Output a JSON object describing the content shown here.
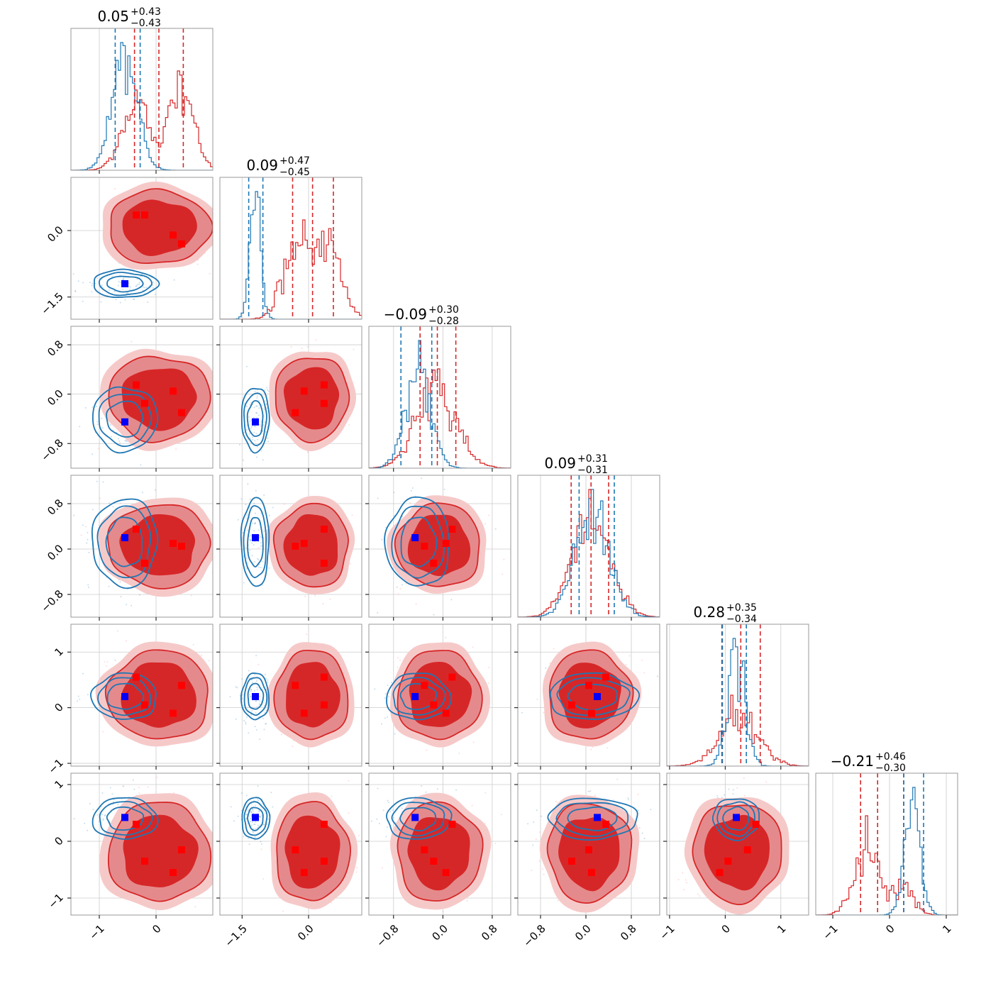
{
  "chart_data": {
    "type": "corner",
    "grid": true,
    "dims": [
      {
        "title": "0.05",
        "title_sup": "+0.43",
        "title_sub": "−0.43",
        "range": [
          -1.5,
          1.0
        ],
        "ticks": [
          -1,
          0
        ],
        "tick_labels": [
          "−1",
          "0"
        ],
        "blue": {
          "mean": -0.55,
          "sd": 0.22,
          "q": [
            -0.72,
            -0.55,
            -0.28
          ]
        },
        "red": {
          "modes": [
            {
              "mu": -0.35,
              "sd": 0.25,
              "w": 0.45
            },
            {
              "mu": 0.45,
              "sd": 0.22,
              "w": 0.55
            }
          ],
          "q": [
            -0.38,
            0.05,
            0.48
          ]
        }
      },
      {
        "title": "0.09",
        "title_sup": "+0.47",
        "title_sub": "−0.45",
        "range": [
          -2.0,
          1.2
        ],
        "ticks": [
          -1.5,
          0.0
        ],
        "tick_labels": [
          "−1.5",
          "0.0"
        ],
        "blue": {
          "mean": -1.2,
          "sd": 0.12,
          "q": [
            -1.35,
            -1.2,
            -1.03
          ]
        },
        "red": {
          "modes": [
            {
              "mu": -0.3,
              "sd": 0.3,
              "w": 0.5
            },
            {
              "mu": 0.45,
              "sd": 0.3,
              "w": 0.5
            }
          ],
          "q": [
            -0.36,
            0.09,
            0.56
          ]
        }
      },
      {
        "title": "−0.09",
        "title_sup": "+0.30",
        "title_sub": "−0.28",
        "range": [
          -1.2,
          1.1
        ],
        "ticks": [
          -0.8,
          0.0,
          0.8
        ],
        "tick_labels": [
          "−0.8",
          "0.0",
          "0.8"
        ],
        "blue": {
          "mean": -0.4,
          "sd": 0.2,
          "q": [
            -0.68,
            -0.4,
            -0.18
          ]
        },
        "red": {
          "modes": [
            {
              "mu": -0.1,
              "sd": 0.32,
              "w": 1.0
            }
          ],
          "q": [
            -0.37,
            -0.09,
            0.21
          ]
        }
      },
      {
        "title": "0.09",
        "title_sup": "+0.31",
        "title_sub": "−0.31",
        "range": [
          -1.2,
          1.3
        ],
        "ticks": [
          -0.8,
          0.0,
          0.8
        ],
        "tick_labels": [
          "−0.8",
          "0.0",
          "0.8"
        ],
        "blue": {
          "mean": 0.12,
          "sd": 0.3,
          "q": [
            -0.12,
            0.12,
            0.5
          ]
        },
        "red": {
          "modes": [
            {
              "mu": 0.1,
              "sd": 0.34,
              "w": 1.0
            }
          ],
          "q": [
            -0.26,
            0.09,
            0.4
          ]
        }
      },
      {
        "title": "0.28",
        "title_sup": "+0.35",
        "title_sub": "−0.34",
        "range": [
          -1.05,
          1.5
        ],
        "ticks": [
          -1,
          0,
          1
        ],
        "tick_labels": [
          "−1",
          "0",
          "1"
        ],
        "blue": {
          "mean": 0.2,
          "sd": 0.16,
          "q": [
            -0.05,
            0.2,
            0.38
          ]
        },
        "red": {
          "modes": [
            {
              "mu": 0.25,
              "sd": 0.35,
              "w": 1.0
            }
          ],
          "q": [
            -0.06,
            0.28,
            0.63
          ]
        }
      },
      {
        "title": "−0.21",
        "title_sup": "+0.46",
        "title_sub": "−0.30",
        "range": [
          -1.3,
          1.2
        ],
        "ticks": [
          -1,
          0,
          1
        ],
        "tick_labels": [
          "−1",
          "0",
          "1"
        ],
        "blue": {
          "mean": 0.4,
          "sd": 0.14,
          "q": [
            0.25,
            0.4,
            0.6
          ]
        },
        "red": {
          "modes": [
            {
              "mu": -0.4,
              "sd": 0.22,
              "w": 0.7
            },
            {
              "mu": 0.25,
              "sd": 0.18,
              "w": 0.3
            }
          ],
          "q": [
            -0.51,
            -0.21,
            0.25
          ]
        }
      }
    ],
    "blue_truth": [
      -0.55,
      -1.2,
      -0.45,
      0.2,
      0.2,
      0.42
    ],
    "red_modes": [
      [
        -0.35,
        0.35,
        0.15,
        0.35,
        0.55,
        0.3
      ],
      [
        -0.2,
        0.35,
        -0.15,
        -0.25,
        0.05,
        -0.35
      ],
      [
        0.3,
        -0.1,
        0.05,
        0.1,
        -0.1,
        -0.55
      ],
      [
        0.45,
        -0.3,
        -0.3,
        0.05,
        0.4,
        -0.15
      ]
    ],
    "colors": {
      "blue": "#1f77b4",
      "red": "#d62728",
      "blue_marker": "#0000ff",
      "red_marker": "#ff0000",
      "grid": "#cccccc",
      "frame": "#999999"
    }
  }
}
